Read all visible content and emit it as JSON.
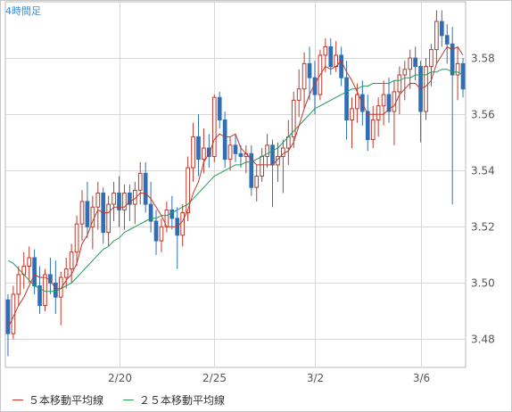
{
  "timeframe_label": "4時間足",
  "colors": {
    "up": "#c0392b",
    "down": "#2f6eb5",
    "ma5": "#c0392b",
    "ma25": "#1e9e5a",
    "grid": "#d8d8d8",
    "axis_text": "#555555"
  },
  "legend": [
    {
      "label": "５本移動平均線",
      "color": "#c0392b"
    },
    {
      "label": "２５本移動平均線",
      "color": "#1e9e5a"
    }
  ],
  "chart_data": {
    "type": "candlestick",
    "title": "",
    "xlabel": "",
    "ylabel": "",
    "ylim": [
      3.47,
      3.6
    ],
    "y_ticks": [
      "3.48",
      "3.50",
      "3.52",
      "3.54",
      "3.56",
      "3.58"
    ],
    "x_ticks": [
      {
        "label": "2/20",
        "index": 21
      },
      {
        "label": "2/25",
        "index": 39
      },
      {
        "label": "3/2",
        "index": 58
      },
      {
        "label": "3/6",
        "index": 78
      }
    ],
    "grid": true,
    "candles": [
      [
        3.494,
        3.496,
        3.474,
        3.482
      ],
      [
        3.482,
        3.499,
        3.48,
        3.496
      ],
      [
        3.496,
        3.506,
        3.492,
        3.503
      ],
      [
        3.503,
        3.511,
        3.498,
        3.506
      ],
      [
        3.506,
        3.513,
        3.5,
        3.509
      ],
      [
        3.509,
        3.512,
        3.496,
        3.499
      ],
      [
        3.499,
        3.506,
        3.489,
        3.492
      ],
      [
        3.492,
        3.505,
        3.49,
        3.503
      ],
      [
        3.503,
        3.509,
        3.496,
        3.5
      ],
      [
        3.5,
        3.508,
        3.489,
        3.495
      ],
      [
        3.495,
        3.504,
        3.485,
        3.502
      ],
      [
        3.502,
        3.509,
        3.498,
        3.505
      ],
      [
        3.505,
        3.514,
        3.5,
        3.511
      ],
      [
        3.511,
        3.524,
        3.506,
        3.521
      ],
      [
        3.521,
        3.533,
        3.515,
        3.529
      ],
      [
        3.529,
        3.536,
        3.516,
        3.52
      ],
      [
        3.52,
        3.531,
        3.512,
        3.527
      ],
      [
        3.527,
        3.536,
        3.519,
        3.532
      ],
      [
        3.532,
        3.534,
        3.514,
        3.518
      ],
      [
        3.518,
        3.531,
        3.513,
        3.528
      ],
      [
        3.528,
        3.536,
        3.522,
        3.532
      ],
      [
        3.532,
        3.538,
        3.52,
        3.526
      ],
      [
        3.526,
        3.535,
        3.519,
        3.532
      ],
      [
        3.532,
        3.535,
        3.522,
        3.528
      ],
      [
        3.528,
        3.536,
        3.521,
        3.533
      ],
      [
        3.533,
        3.543,
        3.528,
        3.539
      ],
      [
        3.539,
        3.543,
        3.525,
        3.528
      ],
      [
        3.528,
        3.536,
        3.518,
        3.522
      ],
      [
        3.522,
        3.526,
        3.51,
        3.515
      ],
      [
        3.515,
        3.523,
        3.511,
        3.52
      ],
      [
        3.52,
        3.529,
        3.518,
        3.526
      ],
      [
        3.526,
        3.531,
        3.519,
        3.523
      ],
      [
        3.523,
        3.527,
        3.505,
        3.517
      ],
      [
        3.517,
        3.528,
        3.513,
        3.525
      ],
      [
        3.525,
        3.545,
        3.522,
        3.541
      ],
      [
        3.541,
        3.557,
        3.536,
        3.552
      ],
      [
        3.552,
        3.56,
        3.538,
        3.544
      ],
      [
        3.544,
        3.555,
        3.539,
        3.548
      ],
      [
        3.548,
        3.553,
        3.541,
        3.545
      ],
      [
        3.545,
        3.567,
        3.543,
        3.566
      ],
      [
        3.566,
        3.568,
        3.555,
        3.558
      ],
      [
        3.558,
        3.561,
        3.541,
        3.544
      ],
      [
        3.544,
        3.552,
        3.54,
        3.549
      ],
      [
        3.549,
        3.553,
        3.543,
        3.546
      ],
      [
        3.546,
        3.549,
        3.541,
        3.545
      ],
      [
        3.545,
        3.549,
        3.539,
        3.546
      ],
      [
        3.546,
        3.549,
        3.531,
        3.534
      ],
      [
        3.534,
        3.542,
        3.529,
        3.538
      ],
      [
        3.538,
        3.548,
        3.536,
        3.545
      ],
      [
        3.545,
        3.553,
        3.541,
        3.549
      ],
      [
        3.549,
        3.551,
        3.527,
        3.542
      ],
      [
        3.542,
        3.55,
        3.536,
        3.545
      ],
      [
        3.545,
        3.551,
        3.532,
        3.548
      ],
      [
        3.548,
        3.558,
        3.542,
        3.552
      ],
      [
        3.552,
        3.568,
        3.548,
        3.565
      ],
      [
        3.565,
        3.576,
        3.559,
        3.569
      ],
      [
        3.569,
        3.582,
        3.562,
        3.578
      ],
      [
        3.578,
        3.584,
        3.565,
        3.573
      ],
      [
        3.573,
        3.579,
        3.56,
        3.567
      ],
      [
        3.567,
        3.583,
        3.565,
        3.581
      ],
      [
        3.581,
        3.587,
        3.575,
        3.584
      ],
      [
        3.584,
        3.587,
        3.574,
        3.577
      ],
      [
        3.577,
        3.586,
        3.575,
        3.581
      ],
      [
        3.581,
        3.584,
        3.57,
        3.573
      ],
      [
        3.573,
        3.579,
        3.551,
        3.558
      ],
      [
        3.558,
        3.566,
        3.548,
        3.562
      ],
      [
        3.562,
        3.571,
        3.557,
        3.567
      ],
      [
        3.567,
        3.572,
        3.556,
        3.561
      ],
      [
        3.561,
        3.567,
        3.547,
        3.551
      ],
      [
        3.551,
        3.563,
        3.548,
        3.558
      ],
      [
        3.558,
        3.566,
        3.552,
        3.563
      ],
      [
        3.563,
        3.572,
        3.556,
        3.567
      ],
      [
        3.567,
        3.573,
        3.557,
        3.561
      ],
      [
        3.561,
        3.572,
        3.549,
        3.568
      ],
      [
        3.568,
        3.577,
        3.56,
        3.574
      ],
      [
        3.574,
        3.579,
        3.565,
        3.576
      ],
      [
        3.576,
        3.583,
        3.569,
        3.58
      ],
      [
        3.58,
        3.584,
        3.572,
        3.577
      ],
      [
        3.577,
        3.579,
        3.55,
        3.561
      ],
      [
        3.561,
        3.58,
        3.558,
        3.577
      ],
      [
        3.577,
        3.585,
        3.57,
        3.583
      ],
      [
        3.583,
        3.597,
        3.578,
        3.593
      ],
      [
        3.593,
        3.597,
        3.584,
        3.588
      ],
      [
        3.588,
        3.592,
        3.578,
        3.585
      ],
      [
        3.585,
        3.591,
        3.528,
        3.574
      ],
      [
        3.574,
        3.584,
        3.565,
        3.578
      ],
      [
        3.578,
        3.58,
        3.566,
        3.569
      ]
    ],
    "ma5": [
      3.484,
      3.488,
      3.492,
      3.495,
      3.499,
      3.503,
      3.502,
      3.502,
      3.501,
      3.498,
      3.498,
      3.501,
      3.503,
      3.507,
      3.514,
      3.517,
      3.522,
      3.526,
      3.525,
      3.525,
      3.527,
      3.527,
      3.527,
      3.529,
      3.53,
      3.532,
      3.532,
      3.53,
      3.527,
      3.524,
      3.52,
      3.52,
      3.52,
      3.522,
      3.526,
      3.532,
      3.536,
      3.543,
      3.546,
      3.551,
      3.553,
      3.552,
      3.552,
      3.553,
      3.548,
      3.546,
      3.544,
      3.542,
      3.542,
      3.542,
      3.542,
      3.544,
      3.546,
      3.547,
      3.55,
      3.556,
      3.562,
      3.567,
      3.571,
      3.574,
      3.577,
      3.576,
      3.577,
      3.579,
      3.575,
      3.572,
      3.568,
      3.564,
      3.56,
      3.56,
      3.56,
      3.56,
      3.562,
      3.563,
      3.567,
      3.569,
      3.571,
      3.571,
      3.569,
      3.57,
      3.572,
      3.578,
      3.581,
      3.584,
      3.583,
      3.584,
      3.581
    ],
    "ma25": [
      3.508,
      3.507,
      3.505,
      3.503,
      3.501,
      3.499,
      3.498,
      3.497,
      3.497,
      3.497,
      3.498,
      3.499,
      3.5,
      3.502,
      3.504,
      3.506,
      3.508,
      3.51,
      3.512,
      3.513,
      3.515,
      3.516,
      3.518,
      3.519,
      3.52,
      3.521,
      3.522,
      3.523,
      3.523,
      3.524,
      3.524,
      3.525,
      3.526,
      3.527,
      3.528,
      3.53,
      3.532,
      3.534,
      3.536,
      3.538,
      3.539,
      3.54,
      3.541,
      3.542,
      3.542,
      3.543,
      3.543,
      3.544,
      3.545,
      3.546,
      3.547,
      3.548,
      3.55,
      3.552,
      3.554,
      3.556,
      3.558,
      3.56,
      3.562,
      3.563,
      3.564,
      3.565,
      3.566,
      3.567,
      3.568,
      3.569,
      3.569,
      3.57,
      3.57,
      3.571,
      3.571,
      3.571,
      3.571,
      3.572,
      3.572,
      3.573,
      3.573,
      3.574,
      3.574,
      3.574,
      3.575,
      3.575,
      3.576,
      3.576,
      3.575,
      3.575,
      3.574
    ]
  }
}
